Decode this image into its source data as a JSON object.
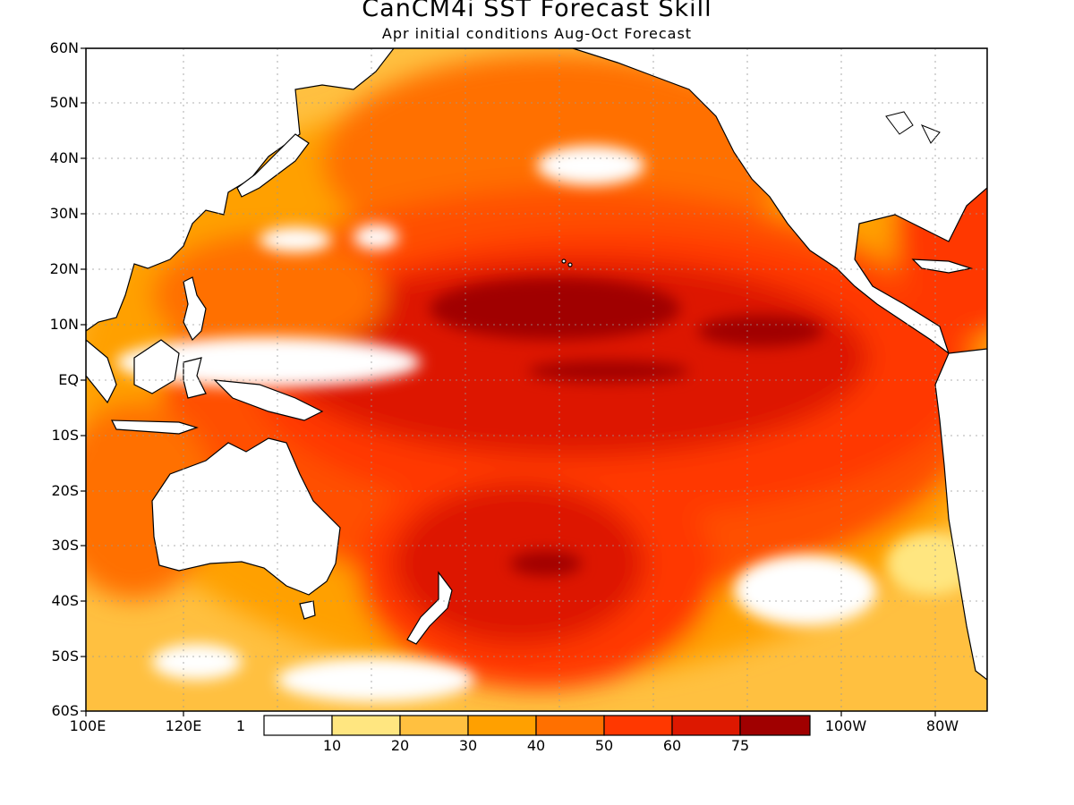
{
  "title": "CanCM4i SST Forecast Skill",
  "subtitle": "Apr initial conditions  Aug-Oct Forecast",
  "lat_labels": [
    "60N",
    "50N",
    "40N",
    "30N",
    "20N",
    "10N",
    "EQ",
    "10S",
    "20S",
    "30S",
    "40S",
    "50S",
    "60S"
  ],
  "lon_labels": [
    "100E",
    "120E",
    "1",
    "100W",
    "80W"
  ],
  "colorbar": {
    "labels": [
      "10",
      "20",
      "30",
      "40",
      "50",
      "60",
      "75"
    ],
    "colors": [
      "#ffffff",
      "#ffe680",
      "#ffc040",
      "#ffa000",
      "#ff7000",
      "#ff3800",
      "#dd1800",
      "#a00000"
    ]
  }
}
